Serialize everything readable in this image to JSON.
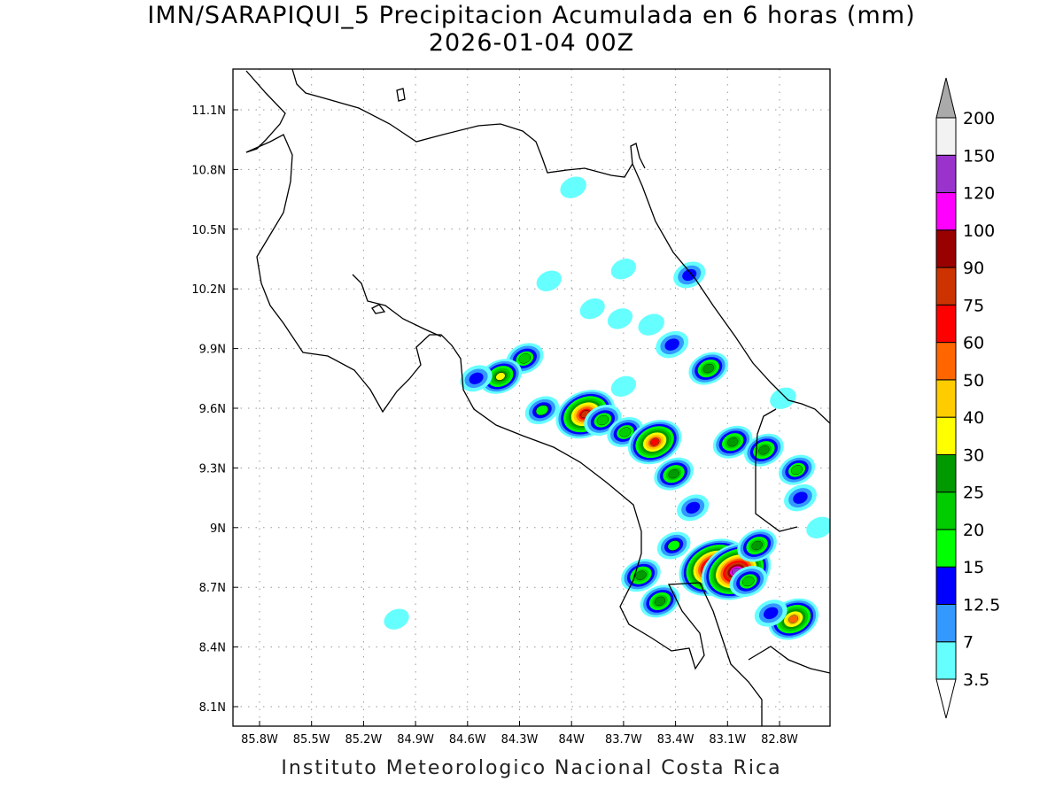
{
  "title": {
    "line1": "IMN/SARAPIQUI_5 Precipitacion Acumulada en 6 horas (mm)",
    "line2": "2026-01-04 00Z"
  },
  "footer": "Instituto Meteorologico Nacional Costa Rica",
  "chart_data": {
    "type": "heatmap",
    "title": "IMN/SARAPIQUI_5 Precipitacion Acumulada en 6 horas (mm)",
    "subtitle": "2026-01-04 00Z",
    "units": "mm",
    "xlim": [
      -85.85,
      -82.55
    ],
    "ylim": [
      8.05,
      11.3
    ],
    "xticks": [
      "85.8W",
      "85.5W",
      "85.2W",
      "84.9W",
      "84.6W",
      "84.3W",
      "84W",
      "83.7W",
      "83.4W",
      "83.1W",
      "82.8W"
    ],
    "xtick_values": [
      -85.8,
      -85.5,
      -85.2,
      -84.9,
      -84.6,
      -84.3,
      -84.0,
      -83.7,
      -83.4,
      -83.1,
      -82.8
    ],
    "yticks": [
      "11.1N",
      "10.8N",
      "10.5N",
      "10.2N",
      "9.9N",
      "9.6N",
      "9.3N",
      "9N",
      "8.7N",
      "8.4N",
      "8.1N"
    ],
    "ytick_values": [
      11.1,
      10.8,
      10.5,
      10.2,
      9.9,
      9.6,
      9.3,
      9.0,
      8.7,
      8.4,
      8.1
    ],
    "grid": true,
    "colorbar": {
      "placement": "right",
      "levels": [
        "3.5",
        "7",
        "12.5",
        "15",
        "20",
        "25",
        "30",
        "40",
        "50",
        "60",
        "75",
        "90",
        "100",
        "120",
        "150",
        "200"
      ],
      "level_values": [
        3.5,
        7,
        12.5,
        15,
        20,
        25,
        30,
        40,
        50,
        60,
        75,
        90,
        100,
        120,
        150,
        200
      ],
      "colors": [
        "#66ffff",
        "#3399ff",
        "#0000ff",
        "#00ff00",
        "#00cc00",
        "#009900",
        "#ffff00",
        "#ffcc00",
        "#ff6600",
        "#ff0000",
        "#cc3300",
        "#990000",
        "#ff00ff",
        "#9933cc",
        "#f2f2f2"
      ],
      "over_color": "#aaaaaa",
      "under_color": "#ffffff"
    },
    "cells": [
      {
        "lon": -83.99,
        "lat": 10.71,
        "max": 6
      },
      {
        "lon": -83.7,
        "lat": 10.3,
        "max": 5
      },
      {
        "lon": -83.32,
        "lat": 10.27,
        "max": 13
      },
      {
        "lon": -83.88,
        "lat": 10.1,
        "max": 5
      },
      {
        "lon": -83.72,
        "lat": 10.05,
        "max": 5
      },
      {
        "lon": -83.54,
        "lat": 10.02,
        "max": 6
      },
      {
        "lon": -84.13,
        "lat": 10.24,
        "max": 5
      },
      {
        "lon": -83.42,
        "lat": 9.92,
        "max": 14
      },
      {
        "lon": -83.21,
        "lat": 9.8,
        "max": 26
      },
      {
        "lon": -84.27,
        "lat": 9.85,
        "max": 22
      },
      {
        "lon": -84.41,
        "lat": 9.76,
        "max": 32
      },
      {
        "lon": -84.55,
        "lat": 9.75,
        "max": 13
      },
      {
        "lon": -83.7,
        "lat": 9.71,
        "max": 5
      },
      {
        "lon": -84.17,
        "lat": 9.59,
        "max": 16
      },
      {
        "lon": -83.92,
        "lat": 9.57,
        "max": 80
      },
      {
        "lon": -83.82,
        "lat": 9.54,
        "max": 22
      },
      {
        "lon": -83.69,
        "lat": 9.48,
        "max": 20
      },
      {
        "lon": -83.52,
        "lat": 9.43,
        "max": 62
      },
      {
        "lon": -83.41,
        "lat": 9.27,
        "max": 26
      },
      {
        "lon": -83.07,
        "lat": 9.43,
        "max": 26
      },
      {
        "lon": -82.89,
        "lat": 9.39,
        "max": 26
      },
      {
        "lon": -82.7,
        "lat": 9.29,
        "max": 20
      },
      {
        "lon": -82.68,
        "lat": 9.15,
        "max": 14
      },
      {
        "lon": -83.3,
        "lat": 9.1,
        "max": 13
      },
      {
        "lon": -83.41,
        "lat": 8.91,
        "max": 15
      },
      {
        "lon": -83.18,
        "lat": 8.8,
        "max": 120
      },
      {
        "lon": -83.05,
        "lat": 8.78,
        "max": 120
      },
      {
        "lon": -82.93,
        "lat": 8.91,
        "max": 26
      },
      {
        "lon": -82.98,
        "lat": 8.73,
        "max": 22
      },
      {
        "lon": -83.6,
        "lat": 8.76,
        "max": 26
      },
      {
        "lon": -83.49,
        "lat": 8.63,
        "max": 26
      },
      {
        "lon": -82.72,
        "lat": 8.54,
        "max": 52
      },
      {
        "lon": -82.85,
        "lat": 8.57,
        "max": 14
      },
      {
        "lon": -85.01,
        "lat": 8.54,
        "max": 5
      },
      {
        "lon": -82.78,
        "lat": 9.65,
        "max": 6
      },
      {
        "lon": -82.57,
        "lat": 9.0,
        "max": 6
      }
    ]
  }
}
